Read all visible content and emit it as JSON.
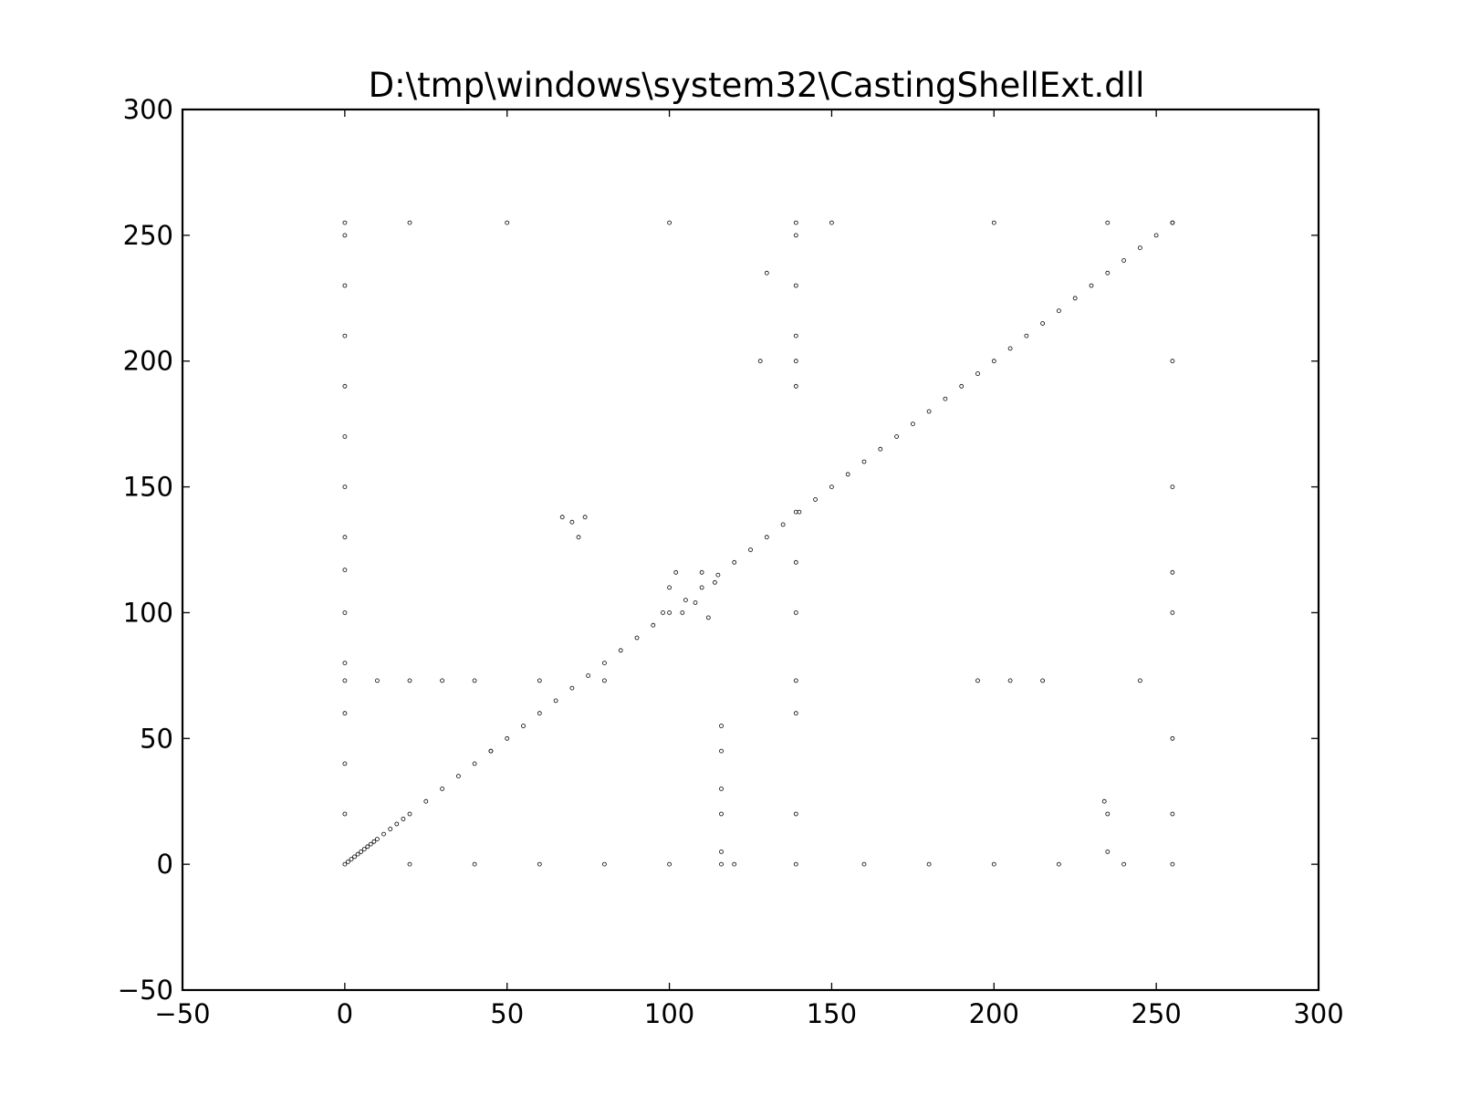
{
  "chart_data": {
    "type": "scatter",
    "title": "D:\\tmp\\windows\\system32\\CastingShellExt.dll",
    "xlabel": "",
    "ylabel": "",
    "xlim": [
      -50,
      300
    ],
    "ylim": [
      -50,
      300
    ],
    "x_ticks": [
      -50,
      0,
      50,
      100,
      150,
      200,
      250,
      300
    ],
    "y_ticks": [
      -50,
      0,
      50,
      100,
      150,
      200,
      250,
      300
    ],
    "x_tick_labels": [
      "−50",
      "0",
      "50",
      "100",
      "150",
      "200",
      "250",
      "300"
    ],
    "y_tick_labels": [
      "−50",
      "0",
      "50",
      "100",
      "150",
      "200",
      "250",
      "300"
    ],
    "grid": false,
    "marker": "hollow-circle",
    "marker_color": "#000000",
    "series": [
      {
        "values_description_free": true,
        "points": [
          [
            0,
            0
          ],
          [
            1,
            1
          ],
          [
            2,
            2
          ],
          [
            3,
            3
          ],
          [
            4,
            4
          ],
          [
            5,
            5
          ],
          [
            6,
            6
          ],
          [
            7,
            7
          ],
          [
            8,
            8
          ],
          [
            9,
            9
          ],
          [
            10,
            10
          ],
          [
            12,
            12
          ],
          [
            14,
            14
          ],
          [
            16,
            16
          ],
          [
            18,
            18
          ],
          [
            20,
            20
          ],
          [
            25,
            25
          ],
          [
            30,
            30
          ],
          [
            35,
            35
          ],
          [
            40,
            40
          ],
          [
            45,
            45
          ],
          [
            50,
            50
          ],
          [
            55,
            55
          ],
          [
            60,
            60
          ],
          [
            65,
            65
          ],
          [
            70,
            70
          ],
          [
            75,
            75
          ],
          [
            80,
            80
          ],
          [
            85,
            85
          ],
          [
            90,
            90
          ],
          [
            95,
            95
          ],
          [
            100,
            100
          ],
          [
            105,
            105
          ],
          [
            110,
            110
          ],
          [
            115,
            115
          ],
          [
            120,
            120
          ],
          [
            125,
            125
          ],
          [
            130,
            130
          ],
          [
            135,
            135
          ],
          [
            140,
            140
          ],
          [
            145,
            145
          ],
          [
            150,
            150
          ],
          [
            155,
            155
          ],
          [
            160,
            160
          ],
          [
            165,
            165
          ],
          [
            170,
            170
          ],
          [
            175,
            175
          ],
          [
            180,
            180
          ],
          [
            185,
            185
          ],
          [
            190,
            190
          ],
          [
            195,
            195
          ],
          [
            200,
            200
          ],
          [
            205,
            205
          ],
          [
            210,
            210
          ],
          [
            215,
            215
          ],
          [
            220,
            220
          ],
          [
            225,
            225
          ],
          [
            230,
            230
          ],
          [
            235,
            235
          ],
          [
            240,
            240
          ],
          [
            245,
            245
          ],
          [
            250,
            250
          ],
          [
            255,
            255
          ],
          [
            0,
            20
          ],
          [
            0,
            40
          ],
          [
            0,
            60
          ],
          [
            0,
            73
          ],
          [
            0,
            80
          ],
          [
            0,
            100
          ],
          [
            0,
            117
          ],
          [
            0,
            130
          ],
          [
            0,
            150
          ],
          [
            0,
            170
          ],
          [
            0,
            190
          ],
          [
            0,
            210
          ],
          [
            0,
            230
          ],
          [
            0,
            250
          ],
          [
            0,
            255
          ],
          [
            20,
            0
          ],
          [
            40,
            0
          ],
          [
            60,
            0
          ],
          [
            80,
            0
          ],
          [
            100,
            0
          ],
          [
            116,
            0
          ],
          [
            120,
            0
          ],
          [
            139,
            0
          ],
          [
            160,
            0
          ],
          [
            180,
            0
          ],
          [
            200,
            0
          ],
          [
            220,
            0
          ],
          [
            240,
            0
          ],
          [
            255,
            0
          ],
          [
            255,
            20
          ],
          [
            255,
            50
          ],
          [
            255,
            100
          ],
          [
            255,
            116
          ],
          [
            255,
            150
          ],
          [
            255,
            200
          ],
          [
            255,
            255
          ],
          [
            20,
            255
          ],
          [
            50,
            255
          ],
          [
            100,
            255
          ],
          [
            139,
            255
          ],
          [
            150,
            255
          ],
          [
            200,
            255
          ],
          [
            235,
            255
          ],
          [
            10,
            73
          ],
          [
            20,
            73
          ],
          [
            30,
            73
          ],
          [
            40,
            73
          ],
          [
            60,
            73
          ],
          [
            80,
            73
          ],
          [
            195,
            73
          ],
          [
            205,
            73
          ],
          [
            215,
            73
          ],
          [
            245,
            73
          ],
          [
            139,
            20
          ],
          [
            139,
            60
          ],
          [
            139,
            73
          ],
          [
            139,
            100
          ],
          [
            139,
            120
          ],
          [
            139,
            140
          ],
          [
            139,
            190
          ],
          [
            139,
            200
          ],
          [
            139,
            210
          ],
          [
            139,
            230
          ],
          [
            139,
            250
          ],
          [
            116,
            5
          ],
          [
            116,
            20
          ],
          [
            116,
            30
          ],
          [
            116,
            45
          ],
          [
            116,
            55
          ],
          [
            98,
            100
          ],
          [
            100,
            110
          ],
          [
            104,
            100
          ],
          [
            108,
            104
          ],
          [
            112,
            98
          ],
          [
            114,
            112
          ],
          [
            110,
            116
          ],
          [
            102,
            116
          ],
          [
            67,
            138
          ],
          [
            70,
            136
          ],
          [
            74,
            138
          ],
          [
            72,
            130
          ],
          [
            130,
            235
          ],
          [
            128,
            200
          ],
          [
            45,
            45
          ],
          [
            235,
            5
          ],
          [
            235,
            20
          ],
          [
            234,
            25
          ]
        ]
      }
    ]
  }
}
